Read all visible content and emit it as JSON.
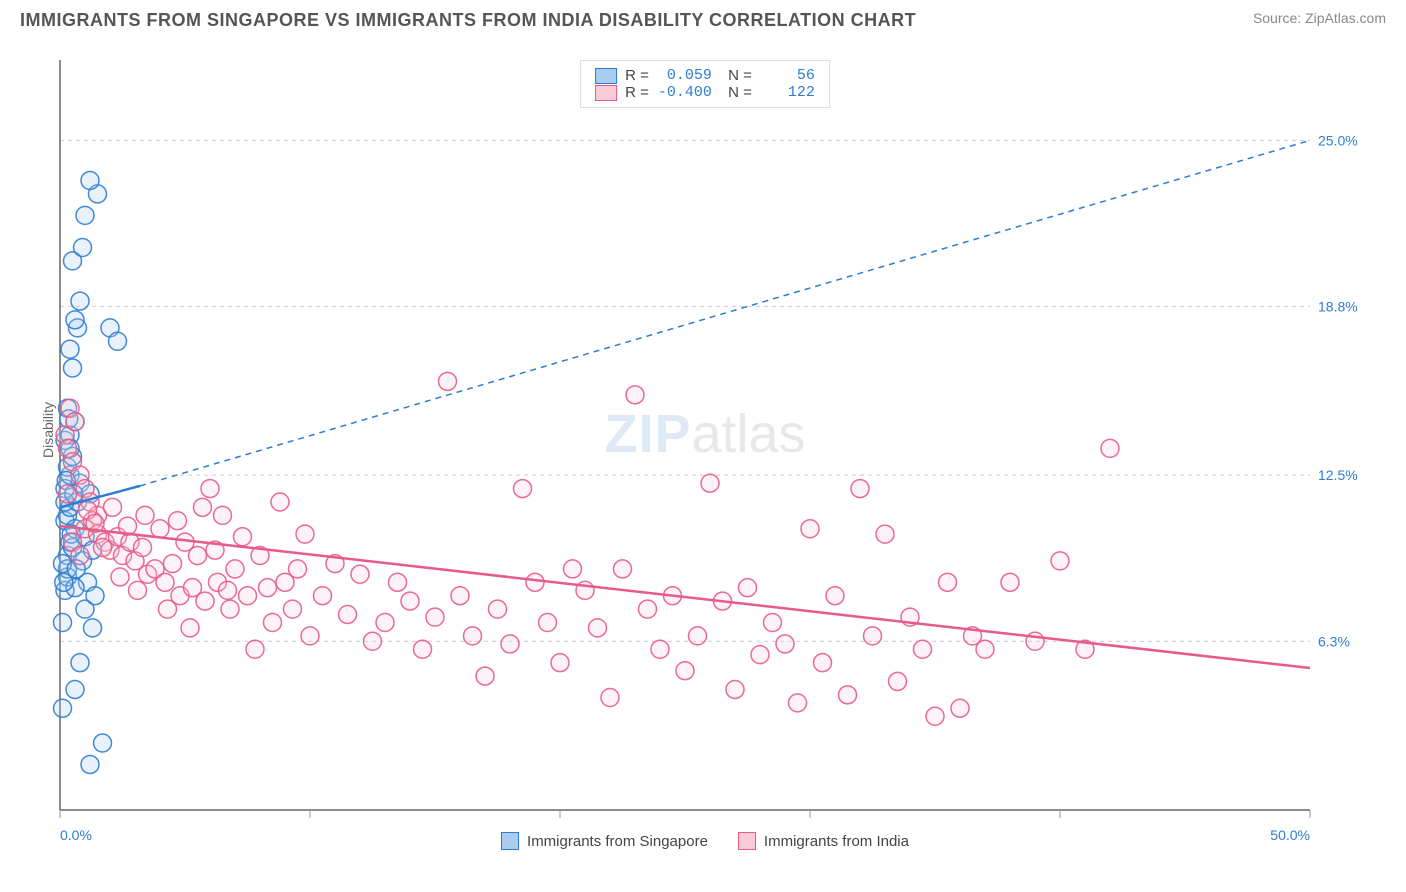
{
  "header": {
    "title": "IMMIGRANTS FROM SINGAPORE VS IMMIGRANTS FROM INDIA DISABILITY CORRELATION CHART",
    "source": "Source: ZipAtlas.com"
  },
  "watermark": {
    "zip": "ZIP",
    "atlas": "atlas"
  },
  "chart": {
    "type": "scatter",
    "ylabel": "Disability",
    "xlim": [
      0,
      50
    ],
    "ylim": [
      0,
      28
    ],
    "x_ticks": [
      0,
      10,
      20,
      30,
      40,
      50
    ],
    "x_tick_labels": {
      "0": "0.0%",
      "50": "50.0%"
    },
    "y_gridlines": [
      6.3,
      12.5,
      18.8,
      25.0
    ],
    "y_tick_labels": [
      "6.3%",
      "12.5%",
      "18.8%",
      "25.0%"
    ],
    "background_color": "#ffffff",
    "grid_color": "#cccccc",
    "grid_dash": "4,4",
    "axis_color": "#666666",
    "marker_radius": 9,
    "marker_fill_opacity": 0.25,
    "marker_stroke_opacity": 0.9,
    "marker_stroke_width": 1.5,
    "series": [
      {
        "name": "Immigrants from Singapore",
        "color": "#5b9bd5",
        "fill": "#a9cdee",
        "stroke": "#2d7dd2",
        "R": "0.059",
        "N": "56",
        "trendline": {
          "x1": 0,
          "y1": 11.3,
          "x2": 3.2,
          "y2": 12.1,
          "dashed_ext_x2": 50,
          "dashed_ext_y2": 25.0,
          "width": 2.5
        },
        "points": [
          [
            0.1,
            7.0
          ],
          [
            0.2,
            8.2
          ],
          [
            0.3,
            8.7
          ],
          [
            0.3,
            9.5
          ],
          [
            0.4,
            10.0
          ],
          [
            0.2,
            10.8
          ],
          [
            0.3,
            11.0
          ],
          [
            0.4,
            11.3
          ],
          [
            0.2,
            12.0
          ],
          [
            0.4,
            12.5
          ],
          [
            0.3,
            12.8
          ],
          [
            0.5,
            13.2
          ],
          [
            0.2,
            13.8
          ],
          [
            0.4,
            14.0
          ],
          [
            0.6,
            14.5
          ],
          [
            0.3,
            15.0
          ],
          [
            0.5,
            16.5
          ],
          [
            0.4,
            17.2
          ],
          [
            0.7,
            18.0
          ],
          [
            0.6,
            18.3
          ],
          [
            0.8,
            19.0
          ],
          [
            0.5,
            20.5
          ],
          [
            0.9,
            21.0
          ],
          [
            1.5,
            23.0
          ],
          [
            1.2,
            23.5
          ],
          [
            1.0,
            22.2
          ],
          [
            2.0,
            18.0
          ],
          [
            2.3,
            17.5
          ],
          [
            1.0,
            7.5
          ],
          [
            1.3,
            6.8
          ],
          [
            0.8,
            5.5
          ],
          [
            0.6,
            4.5
          ],
          [
            1.7,
            2.5
          ],
          [
            1.2,
            1.7
          ],
          [
            0.1,
            3.8
          ],
          [
            0.3,
            9.0
          ],
          [
            0.5,
            9.8
          ],
          [
            0.6,
            10.5
          ],
          [
            0.7,
            11.5
          ],
          [
            0.8,
            12.2
          ],
          [
            0.9,
            9.3
          ],
          [
            1.0,
            10.2
          ],
          [
            1.1,
            8.5
          ],
          [
            1.2,
            11.8
          ],
          [
            1.3,
            9.7
          ],
          [
            1.4,
            8.0
          ],
          [
            0.1,
            9.2
          ],
          [
            0.2,
            11.5
          ],
          [
            0.4,
            13.5
          ],
          [
            0.6,
            8.3
          ],
          [
            0.25,
            12.3
          ],
          [
            0.35,
            14.6
          ],
          [
            0.45,
            10.3
          ],
          [
            0.55,
            11.8
          ],
          [
            0.65,
            9.0
          ],
          [
            0.15,
            8.5
          ]
        ]
      },
      {
        "name": "Immigrants from India",
        "color": "#ed7d9e",
        "fill": "#f9cdd8",
        "stroke": "#e85a87",
        "R": "-0.400",
        "N": "122",
        "trendline": {
          "x1": 0,
          "y1": 10.6,
          "x2": 50,
          "y2": 5.3,
          "width": 2.5
        },
        "points": [
          [
            0.2,
            14.0
          ],
          [
            0.3,
            13.5
          ],
          [
            0.5,
            13.0
          ],
          [
            0.8,
            12.5
          ],
          [
            1.0,
            12.0
          ],
          [
            1.2,
            11.5
          ],
          [
            1.5,
            11.0
          ],
          [
            0.4,
            15.0
          ],
          [
            0.6,
            14.5
          ],
          [
            0.3,
            11.8
          ],
          [
            1.0,
            10.5
          ],
          [
            1.3,
            10.8
          ],
          [
            1.5,
            10.3
          ],
          [
            1.8,
            10.0
          ],
          [
            2.0,
            9.7
          ],
          [
            2.3,
            10.2
          ],
          [
            2.5,
            9.5
          ],
          [
            2.8,
            10.0
          ],
          [
            3.0,
            9.3
          ],
          [
            3.3,
            9.8
          ],
          [
            3.5,
            8.8
          ],
          [
            3.8,
            9.0
          ],
          [
            4.0,
            10.5
          ],
          [
            4.2,
            8.5
          ],
          [
            4.5,
            9.2
          ],
          [
            4.8,
            8.0
          ],
          [
            5.0,
            10.0
          ],
          [
            5.3,
            8.3
          ],
          [
            5.5,
            9.5
          ],
          [
            5.8,
            7.8
          ],
          [
            6.0,
            12.0
          ],
          [
            6.3,
            8.5
          ],
          [
            6.5,
            11.0
          ],
          [
            6.8,
            7.5
          ],
          [
            7.0,
            9.0
          ],
          [
            7.3,
            10.2
          ],
          [
            7.5,
            8.0
          ],
          [
            7.8,
            6.0
          ],
          [
            8.0,
            9.5
          ],
          [
            8.3,
            8.3
          ],
          [
            8.5,
            7.0
          ],
          [
            8.8,
            11.5
          ],
          [
            9.0,
            8.5
          ],
          [
            9.3,
            7.5
          ],
          [
            9.5,
            9.0
          ],
          [
            9.8,
            10.3
          ],
          [
            10.0,
            6.5
          ],
          [
            10.5,
            8.0
          ],
          [
            11.0,
            9.2
          ],
          [
            11.5,
            7.3
          ],
          [
            12.0,
            8.8
          ],
          [
            12.5,
            6.3
          ],
          [
            13.0,
            7.0
          ],
          [
            13.5,
            8.5
          ],
          [
            14.0,
            7.8
          ],
          [
            14.5,
            6.0
          ],
          [
            15.0,
            7.2
          ],
          [
            15.5,
            16.0
          ],
          [
            16.0,
            8.0
          ],
          [
            16.5,
            6.5
          ],
          [
            17.0,
            5.0
          ],
          [
            17.5,
            7.5
          ],
          [
            18.0,
            6.2
          ],
          [
            18.5,
            12.0
          ],
          [
            19.0,
            8.5
          ],
          [
            19.5,
            7.0
          ],
          [
            20.0,
            5.5
          ],
          [
            20.5,
            9.0
          ],
          [
            21.0,
            8.2
          ],
          [
            21.5,
            6.8
          ],
          [
            22.0,
            4.2
          ],
          [
            22.5,
            9.0
          ],
          [
            23.0,
            15.5
          ],
          [
            23.5,
            7.5
          ],
          [
            24.0,
            6.0
          ],
          [
            24.5,
            8.0
          ],
          [
            25.0,
            5.2
          ],
          [
            25.5,
            6.5
          ],
          [
            26.0,
            12.2
          ],
          [
            26.5,
            7.8
          ],
          [
            27.0,
            4.5
          ],
          [
            27.5,
            8.3
          ],
          [
            28.0,
            5.8
          ],
          [
            28.5,
            7.0
          ],
          [
            29.0,
            6.2
          ],
          [
            29.5,
            4.0
          ],
          [
            30.0,
            10.5
          ],
          [
            30.5,
            5.5
          ],
          [
            31.0,
            8.0
          ],
          [
            31.5,
            4.3
          ],
          [
            32.0,
            12.0
          ],
          [
            32.5,
            6.5
          ],
          [
            33.0,
            10.3
          ],
          [
            33.5,
            4.8
          ],
          [
            34.0,
            7.2
          ],
          [
            34.5,
            6.0
          ],
          [
            35.0,
            3.5
          ],
          [
            35.5,
            8.5
          ],
          [
            36.0,
            3.8
          ],
          [
            36.5,
            6.5
          ],
          [
            37.0,
            6.0
          ],
          [
            38.0,
            8.5
          ],
          [
            39.0,
            6.3
          ],
          [
            40.0,
            9.3
          ],
          [
            41.0,
            6.0
          ],
          [
            42.0,
            13.5
          ],
          [
            0.5,
            10.0
          ],
          [
            0.8,
            9.5
          ],
          [
            1.1,
            11.2
          ],
          [
            1.4,
            10.7
          ],
          [
            1.7,
            9.8
          ],
          [
            2.1,
            11.3
          ],
          [
            2.4,
            8.7
          ],
          [
            2.7,
            10.6
          ],
          [
            3.1,
            8.2
          ],
          [
            3.4,
            11.0
          ],
          [
            4.3,
            7.5
          ],
          [
            4.7,
            10.8
          ],
          [
            5.2,
            6.8
          ],
          [
            5.7,
            11.3
          ],
          [
            6.2,
            9.7
          ],
          [
            6.7,
            8.2
          ]
        ]
      }
    ]
  },
  "legend": {
    "series1": "Immigrants from Singapore",
    "series2": "Immigrants from India"
  }
}
